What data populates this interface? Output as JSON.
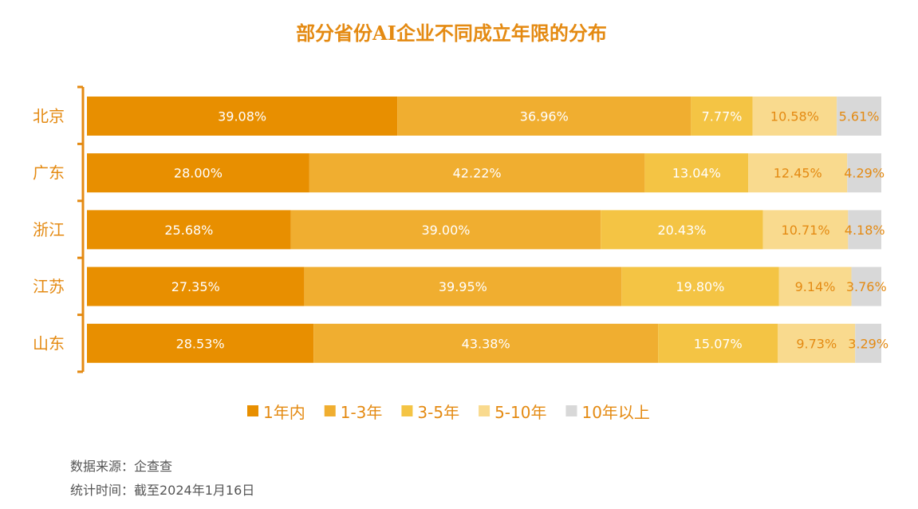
{
  "chart_data": {
    "type": "bar",
    "orientation": "horizontal",
    "stacked": true,
    "title": "部分省份AI企业不同成立年限的分布",
    "categories": [
      "北京",
      "广东",
      "浙江",
      "江苏",
      "山东"
    ],
    "series": [
      {
        "name": "1年内",
        "color": "#e88f00",
        "values": [
          39.08,
          28.0,
          25.68,
          27.35,
          28.53
        ],
        "labels": [
          "39.08%",
          "28.00%",
          "25.68%",
          "27.35%",
          "28.53%"
        ]
      },
      {
        "name": "1-3年",
        "color": "#f0ae30",
        "values": [
          36.96,
          42.22,
          39.0,
          39.95,
          43.38
        ],
        "labels": [
          "36.96%",
          "42.22%",
          "39.00%",
          "39.95%",
          "43.38%"
        ]
      },
      {
        "name": "3-5年",
        "color": "#f4c444",
        "values": [
          7.77,
          13.04,
          20.43,
          19.8,
          15.07
        ],
        "labels": [
          "7.77%",
          "13.04%",
          "20.43%",
          "19.80%",
          "15.07%"
        ]
      },
      {
        "name": "5-10年",
        "color": "#f9da8e",
        "values": [
          10.58,
          12.45,
          10.71,
          9.14,
          9.73
        ],
        "labels": [
          "10.58%",
          "12.45%",
          "10.71%",
          "9.14%",
          "9.73%"
        ]
      },
      {
        "name": "10年以上",
        "color": "#d8d8d8",
        "values": [
          5.61,
          4.29,
          4.18,
          3.76,
          3.29
        ],
        "labels": [
          "5.61%",
          "4.29%",
          "4.18%",
          "3.76%",
          "3.29%"
        ]
      }
    ],
    "value_label_colors": [
      "#ffffff",
      "#ffffff",
      "#ffffff",
      "#e48a12",
      "#e48a12"
    ],
    "legend_position": "bottom",
    "accent_color": "#e48a12"
  },
  "footer": {
    "source": "数据来源：企查查",
    "date": "统计时间：截至2024年1月16日"
  }
}
